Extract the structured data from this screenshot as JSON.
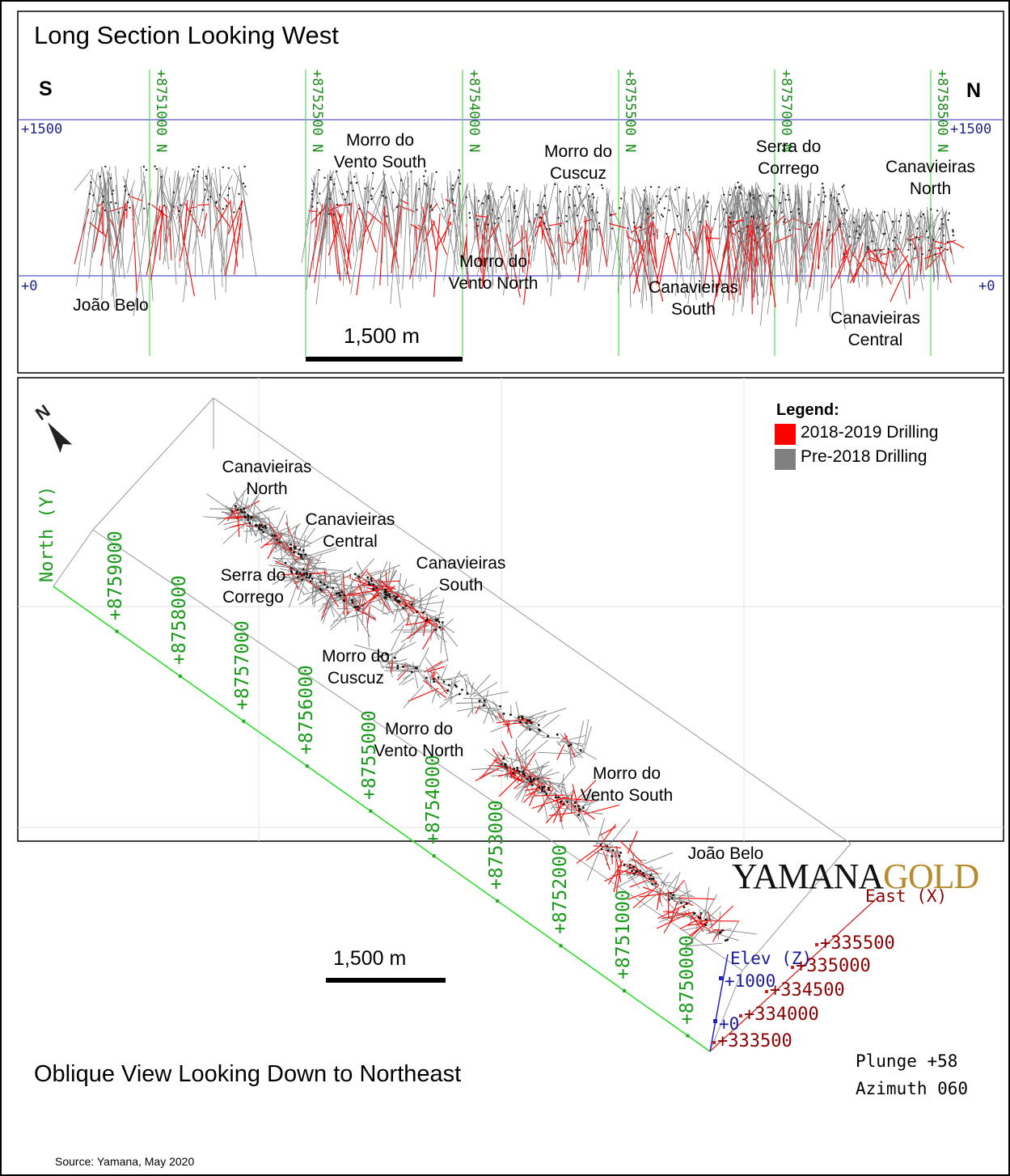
{
  "long_section": {
    "title": "Long Section Looking West",
    "south": "S",
    "north": "N",
    "elev_top_left": "+1500",
    "elev_top_right": "+1500",
    "elev_bottom_left": "+0",
    "elev_bottom_right": "+0",
    "northings": [
      "+8751000 N",
      "+8752500 N",
      "+8754000 N",
      "+8755500 N",
      "+8757000 N",
      "+8758500 N"
    ],
    "scale_label": "1,500 m",
    "deposits": [
      {
        "line1": "João Belo",
        "line2": ""
      },
      {
        "line1": "Morro do",
        "line2": "Vento South"
      },
      {
        "line1": "Morro do",
        "line2": "Vento North"
      },
      {
        "line1": "Morro do",
        "line2": "Cuscuz"
      },
      {
        "line1": "Canavieiras",
        "line2": "South"
      },
      {
        "line1": "Serra do",
        "line2": "Corrego"
      },
      {
        "line1": "Canavieiras",
        "line2": "Central"
      },
      {
        "line1": "Canavieiras",
        "line2": "North"
      }
    ]
  },
  "oblique_view": {
    "title": "Oblique View Looking Down to Northeast",
    "axis_north": "North (Y)",
    "axis_east": "East (X)",
    "axis_elev": "Elev (Z)",
    "northing_ticks": [
      "+8759000",
      "+8758000",
      "+8757000",
      "+8756000",
      "+8755000",
      "+8754000",
      "+8753000",
      "+8752000",
      "+8751000",
      "+8750000"
    ],
    "easting_ticks": [
      "+335500",
      "+335000",
      "+334500",
      "+334000",
      "+333500"
    ],
    "elev_ticks": [
      "+1000",
      "+0"
    ],
    "scale_label": "1,500 m",
    "plunge": "Plunge +58",
    "azimuth": "Azimuth 060",
    "north_arrow": "N",
    "legend": {
      "title": "Legend:",
      "items": [
        {
          "label": "2018-2019 Drilling",
          "color": "#ff0000"
        },
        {
          "label": "Pre-2018 Drilling",
          "color": "#808080"
        }
      ]
    },
    "deposits": [
      {
        "line1": "Canavieiras",
        "line2": "North"
      },
      {
        "line1": "Canavieiras",
        "line2": "Central"
      },
      {
        "line1": "Serra do",
        "line2": "Corrego"
      },
      {
        "line1": "Canavieiras",
        "line2": "South"
      },
      {
        "line1": "Morro do",
        "line2": "Cuscuz"
      },
      {
        "line1": "Morro do",
        "line2": "Vento North"
      },
      {
        "line1": "Morro do",
        "line2": "Vento South"
      },
      {
        "line1": "João Belo",
        "line2": ""
      }
    ]
  },
  "footer": {
    "source": "Source: Yamana, May 2020",
    "logo_part1": "YAMANA",
    "logo_part2": "GOLD"
  },
  "colors": {
    "new_drilling": "#ff0000",
    "old_drilling": "#808080",
    "northing_line": "#00cc00",
    "elevation_line": "#5555cc",
    "easting_axis": "#8b0000"
  }
}
